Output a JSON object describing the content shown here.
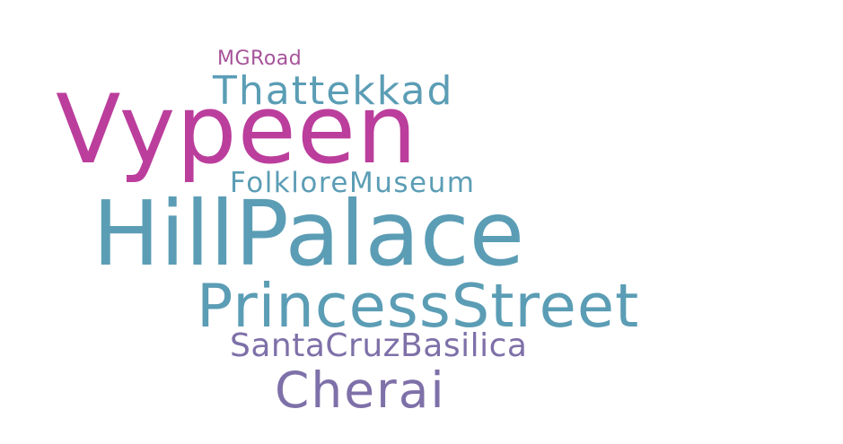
{
  "words": [
    {
      "text": "MGRoad",
      "color": "#a6539a"
    },
    {
      "text": "Thattekkad",
      "color": "#5b9db5"
    },
    {
      "text": "Vypeen",
      "color": "#bb3e9c"
    },
    {
      "text": "FolkloreMuseum",
      "color": "#5b9db5"
    },
    {
      "text": "HillPalace",
      "color": "#5b9db5"
    },
    {
      "text": "PrincessStreet",
      "color": "#5b9db5"
    },
    {
      "text": "SantaCruzBasilica",
      "color": "#7e70a8"
    },
    {
      "text": "Cherai",
      "color": "#7e70a8"
    }
  ],
  "background": "#ffffff"
}
